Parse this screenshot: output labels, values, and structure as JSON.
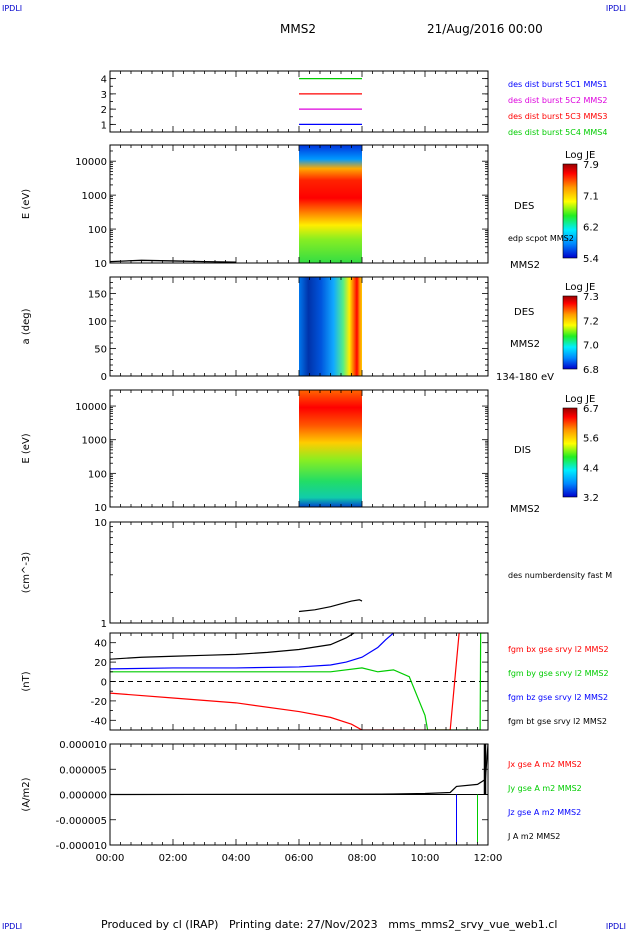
{
  "corners": {
    "tl": "IPDLI",
    "tr": "IPDLI",
    "bl": "IPDLI",
    "br": "IPDLI"
  },
  "header": {
    "spacecraft": "MMS2",
    "date": "21/Aug/2016 00:00"
  },
  "footer": {
    "producer": "Produced by cl (IRAP)",
    "printing_date": "Printing date: 27/Nov/2023",
    "file": "mms_mms2_srvy_vue_web1.cl"
  },
  "colors": {
    "black": "#000000",
    "blue": "#0000ff",
    "red": "#ff0000",
    "magenta": "#dd00dd",
    "green": "#00cc00",
    "orange": "#ff9900",
    "navy": "#000099"
  },
  "chart_data": [
    {
      "type": "line",
      "id": "availability",
      "xlim": [
        "00:00",
        "12:00"
      ],
      "ylim": [
        0.5,
        4.5
      ],
      "yticks": [
        "1",
        "2",
        "3",
        "4"
      ],
      "series": [
        {
          "name": "des dist burst 5C1 MMS1",
          "level": 1,
          "x": [
            "06:00",
            "08:00"
          ],
          "color": "#0000ff"
        },
        {
          "name": "des dist burst 5C2 MMS2",
          "level": 2,
          "x": [
            "06:00",
            "08:00"
          ],
          "color": "#dd00dd"
        },
        {
          "name": "des dist burst 5C3 MMS3",
          "level": 3,
          "x": [
            "06:00",
            "08:00"
          ],
          "color": "#ff0000"
        },
        {
          "name": "des dist burst 5C4 MMS4",
          "level": 4,
          "x": [
            "06:00",
            "08:00"
          ],
          "color": "#00cc00"
        }
      ]
    },
    {
      "type": "heatmap",
      "id": "des-energy",
      "ylabel": "E (eV)",
      "yscale": "log",
      "ylim": [
        10,
        30000
      ],
      "yticks": [
        "10",
        "100",
        "1000",
        "10000"
      ],
      "x": [
        "06:00",
        "08:00"
      ],
      "labels": [
        "DES",
        "edp scpot MMS2",
        "MMS2"
      ],
      "colorbar": {
        "title": "Log JE",
        "ticks": [
          "7.9",
          "7.1",
          "6.2",
          "5.4"
        ],
        "range": [
          5.4,
          7.9
        ]
      },
      "overlay_scpot": {
        "x": [
          "00:00",
          "01:00",
          "02:00",
          "03:00",
          "04:00"
        ],
        "y": [
          11,
          12,
          11.5,
          11,
          10.6
        ]
      }
    },
    {
      "type": "heatmap",
      "id": "des-pitch",
      "ylabel": "a (deg)",
      "ylim": [
        0,
        180
      ],
      "yticks": [
        "0",
        "50",
        "100",
        "150"
      ],
      "x": [
        "06:00",
        "08:00"
      ],
      "labels": [
        "DES",
        "MMS2",
        "134-180 eV"
      ],
      "colorbar": {
        "title": "Log JE",
        "ticks": [
          "7.3",
          "7.2",
          "7.0",
          "6.8"
        ],
        "range": [
          6.8,
          7.3
        ]
      }
    },
    {
      "type": "heatmap",
      "id": "dis-energy",
      "ylabel": "E (eV)",
      "yscale": "log",
      "ylim": [
        10,
        30000
      ],
      "yticks": [
        "10",
        "100",
        "1000",
        "10000"
      ],
      "x": [
        "06:00",
        "08:00"
      ],
      "labels": [
        "DIS",
        "MMS2"
      ],
      "colorbar": {
        "title": "Log JE",
        "ticks": [
          "6.7",
          "5.6",
          "4.4",
          "3.2"
        ],
        "range": [
          3.2,
          6.7
        ]
      }
    },
    {
      "type": "line",
      "id": "density",
      "ylabel": "(cm^-3)",
      "yscale": "log",
      "ylim": [
        1,
        10
      ],
      "yticks": [
        "1",
        "10"
      ],
      "series": [
        {
          "name": "des numberdensity fast M",
          "color": "#000000",
          "x": [
            "06:00",
            "06:30",
            "07:00",
            "07:20",
            "07:40",
            "07:55",
            "08:00"
          ],
          "y": [
            1.3,
            1.35,
            1.45,
            1.55,
            1.65,
            1.7,
            1.65
          ]
        }
      ]
    },
    {
      "type": "line",
      "id": "fgm",
      "ylabel": "(nT)",
      "ylim": [
        -50,
        50
      ],
      "yticks": [
        "-40",
        "-20",
        "0",
        "20",
        "40"
      ],
      "series": [
        {
          "name": "fgm bx gse srvy l2 MMS2",
          "color": "#ff0000",
          "x": [
            "00:00",
            "02:00",
            "04:00",
            "06:00",
            "07:00",
            "07:40",
            "08:00",
            "10:48",
            "11:05"
          ],
          "y": [
            -12,
            -17,
            -22,
            -31,
            -37,
            -44,
            -50,
            -50,
            50
          ]
        },
        {
          "name": "fgm by gse srvy l2 MMS2",
          "color": "#00cc00",
          "x": [
            "00:00",
            "02:00",
            "04:00",
            "06:00",
            "07:00",
            "08:00",
            "08:30",
            "09:00",
            "09:30",
            "10:00",
            "10:05",
            "11:45",
            "11:46",
            "11:55"
          ],
          "y": [
            10,
            10,
            10,
            10,
            10,
            14,
            10,
            12,
            5,
            -35,
            -50,
            -50,
            50,
            50
          ]
        },
        {
          "name": "fgm bz gse srvy l2 MMS2",
          "color": "#0000ff",
          "x": [
            "00:00",
            "02:00",
            "04:00",
            "06:00",
            "07:00",
            "07:30",
            "08:00",
            "08:30",
            "08:45",
            "09:00"
          ],
          "y": [
            13,
            14,
            14,
            15,
            17,
            20,
            25,
            35,
            43,
            50
          ]
        },
        {
          "name": "fgm bt gse srvy l2 MMS2",
          "color": "#000000",
          "x": [
            "00:00",
            "01:00",
            "02:00",
            "03:00",
            "04:00",
            "05:00",
            "06:00",
            "07:00",
            "07:30",
            "07:45"
          ],
          "y": [
            23,
            25,
            26,
            27,
            28,
            30,
            33,
            38,
            45,
            50
          ]
        }
      ]
    },
    {
      "type": "line",
      "id": "current",
      "ylabel": "(A/m2)",
      "ylim": [
        -1e-05,
        1e-05
      ],
      "yticks": [
        "-0.000010",
        "-0.000005",
        "0.000000",
        "0.000005",
        "0.000010"
      ],
      "xlim": [
        "00:00",
        "12:00"
      ],
      "xticks": [
        "00:00",
        "02:00",
        "04:00",
        "06:00",
        "08:00",
        "10:00",
        "12:00"
      ],
      "series": [
        {
          "name": "Jx gse A m2 MMS2",
          "color": "#ff0000"
        },
        {
          "name": "Jy gse A m2 MMS2",
          "color": "#00cc00"
        },
        {
          "name": "Jz gse A m2 MMS2",
          "color": "#0000ff"
        },
        {
          "name": "J A m2 MMS2",
          "color": "#000000",
          "x": [
            "00:00",
            "07:00",
            "09:00",
            "10:00",
            "10:48",
            "11:00",
            "11:40",
            "11:55",
            "12:00"
          ],
          "y": [
            0,
            5e-08,
            1e-07,
            2e-07,
            4e-07,
            1.6e-06,
            2e-06,
            3e-06,
            1e-05
          ]
        }
      ]
    }
  ]
}
